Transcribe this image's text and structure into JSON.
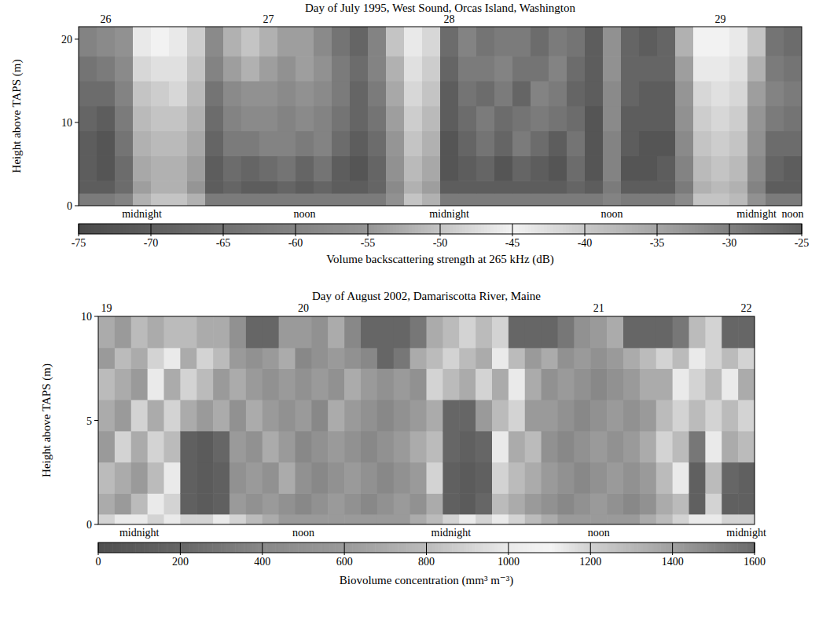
{
  "chart_data": [
    {
      "type": "heatmap",
      "title": "Day of July 1995, West Sound, Orcas Island, Washington",
      "y_label": "Height above TAPS (m)",
      "categories": [
        null,
        null,
        null,
        "midnight",
        null,
        null,
        null,
        null,
        null,
        null,
        null,
        null,
        "noon",
        null,
        null,
        null,
        null,
        null,
        null,
        null,
        "midnight",
        null,
        null,
        null,
        null,
        null,
        null,
        null,
        null,
        "noon",
        null,
        null,
        null,
        null,
        null,
        null,
        null,
        "midnight",
        null,
        "noon"
      ],
      "top_labels": [
        null,
        "26",
        null,
        null,
        null,
        null,
        null,
        null,
        null,
        null,
        "27",
        null,
        null,
        null,
        null,
        null,
        null,
        null,
        null,
        null,
        "28",
        null,
        null,
        null,
        null,
        null,
        null,
        null,
        null,
        null,
        null,
        null,
        null,
        null,
        null,
        "29",
        null,
        null,
        null,
        null
      ],
      "ylim": [
        0,
        21.5
      ],
      "yticks": [
        0,
        10,
        20
      ],
      "y_edges": [
        0,
        1.5,
        3,
        6,
        9,
        12,
        15,
        18,
        21.5
      ],
      "cells": [
        [
          -62,
          -70,
          -70,
          -70,
          -68,
          -66,
          -64,
          -60
        ],
        [
          -62,
          -70,
          -72,
          -72,
          -70,
          -66,
          -62,
          -58
        ],
        [
          -60,
          -66,
          -66,
          -64,
          -62,
          -60,
          -58,
          -56
        ],
        [
          -52,
          -54,
          -53,
          -52,
          -51,
          -50,
          -48,
          -46
        ],
        [
          -50,
          -52,
          -52,
          -51,
          -50,
          -49,
          -47,
          -45
        ],
        [
          -50,
          -52,
          -52,
          -51,
          -50,
          -48,
          -47,
          -46
        ],
        [
          -52,
          -55,
          -54,
          -53,
          -52,
          -51,
          -50,
          -49
        ],
        [
          -62,
          -70,
          -70,
          -68,
          -66,
          -64,
          -60,
          -58
        ],
        [
          -62,
          -68,
          -66,
          -62,
          -60,
          -58,
          -54,
          -52
        ],
        [
          -62,
          -70,
          -68,
          -62,
          -58,
          -56,
          -52,
          -50
        ],
        [
          -62,
          -70,
          -66,
          -60,
          -58,
          -56,
          -54,
          -52
        ],
        [
          -62,
          -68,
          -64,
          -60,
          -60,
          -58,
          -56,
          -54
        ],
        [
          -62,
          -70,
          -68,
          -62,
          -58,
          -56,
          -54,
          -54
        ],
        [
          -62,
          -68,
          -64,
          -60,
          -60,
          -58,
          -56,
          -58
        ],
        [
          -62,
          -70,
          -70,
          -66,
          -64,
          -62,
          -62,
          -64
        ],
        [
          -62,
          -70,
          -72,
          -70,
          -68,
          -68,
          -66,
          -68
        ],
        [
          -62,
          -68,
          -68,
          -66,
          -64,
          -62,
          -60,
          -60
        ],
        [
          -56,
          -58,
          -56,
          -55,
          -54,
          -53,
          -52,
          -50
        ],
        [
          -50,
          -52,
          -51,
          -50,
          -49,
          -48,
          -47,
          -46
        ],
        [
          -52,
          -54,
          -53,
          -52,
          -51,
          -50,
          -49,
          -48
        ],
        [
          -62,
          -70,
          -72,
          -72,
          -70,
          -70,
          -68,
          -66
        ],
        [
          -62,
          -70,
          -70,
          -68,
          -66,
          -64,
          -62,
          -60
        ],
        [
          -62,
          -70,
          -68,
          -64,
          -62,
          -66,
          -62,
          -64
        ],
        [
          -62,
          -70,
          -72,
          -68,
          -66,
          -62,
          -60,
          -62
        ],
        [
          -62,
          -70,
          -68,
          -62,
          -64,
          -68,
          -64,
          -62
        ],
        [
          -62,
          -70,
          -70,
          -66,
          -62,
          -60,
          -64,
          -66
        ],
        [
          -62,
          -70,
          -72,
          -70,
          -64,
          -62,
          -60,
          -62
        ],
        [
          -62,
          -68,
          -66,
          -64,
          -66,
          -68,
          -66,
          -64
        ],
        [
          -62,
          -70,
          -72,
          -72,
          -72,
          -70,
          -70,
          -70
        ],
        [
          -60,
          -62,
          -60,
          -60,
          -58,
          -58,
          -56,
          -56
        ],
        [
          -62,
          -70,
          -72,
          -70,
          -70,
          -68,
          -68,
          -68
        ],
        [
          -62,
          -70,
          -72,
          -72,
          -70,
          -70,
          -68,
          -70
        ],
        [
          -62,
          -70,
          -70,
          -72,
          -70,
          -70,
          -68,
          -68
        ],
        [
          -58,
          -62,
          -60,
          -58,
          -56,
          -55,
          -54,
          -52
        ],
        [
          -50,
          -52,
          -51,
          -50,
          -49,
          -48,
          -46,
          -45
        ],
        [
          -50,
          -51,
          -50,
          -49,
          -48,
          -47,
          -46,
          -45
        ],
        [
          -51,
          -52,
          -51,
          -50,
          -49,
          -48,
          -47,
          -46
        ],
        [
          -56,
          -60,
          -58,
          -56,
          -55,
          -54,
          -52,
          -50
        ],
        [
          -62,
          -70,
          -68,
          -66,
          -62,
          -60,
          -62,
          -64
        ],
        [
          -62,
          -70,
          -70,
          -66,
          -64,
          -62,
          -64,
          -66
        ]
      ],
      "colorbar": {
        "label": "Volume backscattering strength at 265 kHz (dB)",
        "range": [
          -75,
          -25
        ],
        "ticks": [
          -75,
          -70,
          -65,
          -60,
          -55,
          -50,
          -45,
          -40,
          -35,
          -30,
          -25
        ]
      }
    },
    {
      "type": "heatmap",
      "title": "Day of August 2002, Damariscotta River, Maine",
      "y_label": "Height above TAPS (m)",
      "categories": [
        null,
        null,
        "midnight",
        null,
        null,
        null,
        null,
        null,
        null,
        null,
        null,
        null,
        "noon",
        null,
        null,
        null,
        null,
        null,
        null,
        null,
        null,
        "midnight",
        null,
        null,
        null,
        null,
        null,
        null,
        null,
        null,
        "noon",
        null,
        null,
        null,
        null,
        null,
        null,
        null,
        null,
        "midnight"
      ],
      "top_labels": [
        "19",
        null,
        null,
        null,
        null,
        null,
        null,
        null,
        null,
        null,
        null,
        null,
        "20",
        null,
        null,
        null,
        null,
        null,
        null,
        null,
        null,
        null,
        null,
        null,
        null,
        null,
        null,
        null,
        null,
        null,
        "21",
        null,
        null,
        null,
        null,
        null,
        null,
        null,
        null,
        "22"
      ],
      "ylim": [
        0,
        10
      ],
      "yticks": [
        0,
        5,
        10
      ],
      "y_edges": [
        0,
        0.5,
        1.5,
        3,
        4.5,
        6,
        7.5,
        8.5,
        10
      ],
      "cells": [
        [
          900,
          700,
          800,
          600,
          700,
          800,
          600,
          700
        ],
        [
          1000,
          600,
          700,
          900,
          600,
          700,
          800,
          600
        ],
        [
          1000,
          800,
          600,
          700,
          900,
          600,
          700,
          800
        ],
        [
          900,
          1000,
          800,
          900,
          700,
          1000,
          900,
          700
        ],
        [
          1000,
          900,
          1000,
          800,
          900,
          700,
          1000,
          800
        ],
        [
          900,
          150,
          150,
          150,
          700,
          900,
          700,
          800
        ],
        [
          900,
          100,
          100,
          100,
          600,
          800,
          900,
          700
        ],
        [
          1000,
          150,
          150,
          200,
          700,
          600,
          800,
          700
        ],
        [
          900,
          600,
          500,
          600,
          500,
          700,
          600,
          500
        ],
        [
          800,
          500,
          600,
          500,
          700,
          600,
          500,
          200
        ],
        [
          700,
          600,
          500,
          700,
          600,
          500,
          600,
          200
        ],
        [
          600,
          500,
          700,
          600,
          500,
          600,
          700,
          600
        ],
        [
          600,
          400,
          500,
          400,
          600,
          500,
          400,
          600
        ],
        [
          600,
          500,
          400,
          500,
          400,
          600,
          500,
          500
        ],
        [
          600,
          600,
          500,
          600,
          700,
          500,
          600,
          700
        ],
        [
          600,
          500,
          600,
          500,
          600,
          700,
          500,
          400
        ],
        [
          600,
          400,
          500,
          400,
          500,
          600,
          400,
          200
        ],
        [
          600,
          500,
          400,
          500,
          400,
          500,
          200,
          200
        ],
        [
          600,
          600,
          500,
          600,
          500,
          600,
          300,
          200
        ],
        [
          700,
          500,
          600,
          700,
          600,
          500,
          700,
          300
        ],
        [
          800,
          700,
          900,
          800,
          700,
          900,
          800,
          700
        ],
        [
          900,
          150,
          150,
          200,
          200,
          800,
          900,
          800
        ],
        [
          1000,
          100,
          100,
          150,
          200,
          700,
          800,
          900
        ],
        [
          900,
          200,
          150,
          200,
          600,
          900,
          700,
          800
        ],
        [
          1000,
          800,
          900,
          1000,
          800,
          700,
          1000,
          900
        ],
        [
          900,
          700,
          800,
          700,
          900,
          1000,
          800,
          200
        ],
        [
          800,
          600,
          700,
          800,
          600,
          700,
          600,
          200
        ],
        [
          700,
          500,
          600,
          500,
          600,
          500,
          700,
          200
        ],
        [
          600,
          400,
          500,
          400,
          500,
          600,
          500,
          300
        ],
        [
          600,
          500,
          400,
          500,
          400,
          500,
          600,
          500
        ],
        [
          600,
          600,
          500,
          600,
          500,
          400,
          500,
          600
        ],
        [
          600,
          500,
          600,
          500,
          600,
          500,
          600,
          700
        ],
        [
          600,
          400,
          500,
          600,
          500,
          600,
          700,
          200
        ],
        [
          700,
          500,
          600,
          700,
          600,
          700,
          800,
          200
        ],
        [
          800,
          700,
          800,
          900,
          800,
          700,
          900,
          200
        ],
        [
          900,
          800,
          1000,
          800,
          900,
          1000,
          800,
          300
        ],
        [
          1000,
          150,
          150,
          300,
          800,
          900,
          1000,
          800
        ],
        [
          1000,
          900,
          800,
          1000,
          900,
          800,
          900,
          900
        ],
        [
          900,
          150,
          200,
          700,
          800,
          1000,
          800,
          200
        ],
        [
          900,
          150,
          150,
          800,
          900,
          700,
          900,
          200
        ]
      ],
      "colorbar": {
        "label": "Biovolume concentration (mm³ m⁻³)",
        "range": [
          0,
          1600
        ],
        "ticks": [
          0,
          200,
          400,
          600,
          800,
          1000,
          1200,
          1400,
          1600
        ]
      }
    }
  ]
}
